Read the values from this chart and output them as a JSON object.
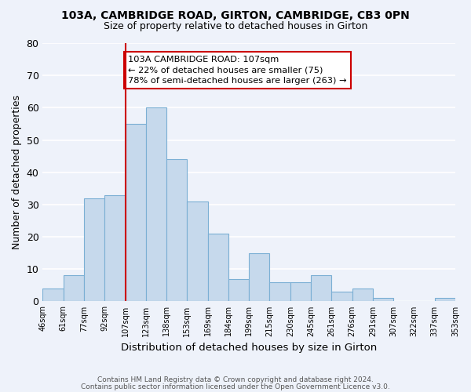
{
  "title1": "103A, CAMBRIDGE ROAD, GIRTON, CAMBRIDGE, CB3 0PN",
  "title2": "Size of property relative to detached houses in Girton",
  "xlabel": "Distribution of detached houses by size in Girton",
  "ylabel": "Number of detached properties",
  "bin_labels": [
    "46sqm",
    "61sqm",
    "77sqm",
    "92sqm",
    "107sqm",
    "123sqm",
    "138sqm",
    "153sqm",
    "169sqm",
    "184sqm",
    "199sqm",
    "215sqm",
    "230sqm",
    "245sqm",
    "261sqm",
    "276sqm",
    "291sqm",
    "307sqm",
    "322sqm",
    "337sqm",
    "353sqm"
  ],
  "bar_heights": [
    4,
    8,
    32,
    33,
    55,
    60,
    44,
    31,
    21,
    7,
    15,
    6,
    6,
    8,
    3,
    4,
    1,
    0,
    0,
    1
  ],
  "bar_color": "#c6d9ec",
  "bar_edge_color": "#7bafd4",
  "vline_x_index": 4,
  "vline_color": "#cc0000",
  "ylim": [
    0,
    80
  ],
  "yticks": [
    0,
    10,
    20,
    30,
    40,
    50,
    60,
    70,
    80
  ],
  "annotation_text": "103A CAMBRIDGE ROAD: 107sqm\n← 22% of detached houses are smaller (75)\n78% of semi-detached houses are larger (263) →",
  "annotation_box_color": "#ffffff",
  "annotation_box_edge": "#cc0000",
  "footer1": "Contains HM Land Registry data © Crown copyright and database right 2024.",
  "footer2": "Contains public sector information licensed under the Open Government Licence v3.0.",
  "background_color": "#eef2fa",
  "grid_color": "#ffffff"
}
